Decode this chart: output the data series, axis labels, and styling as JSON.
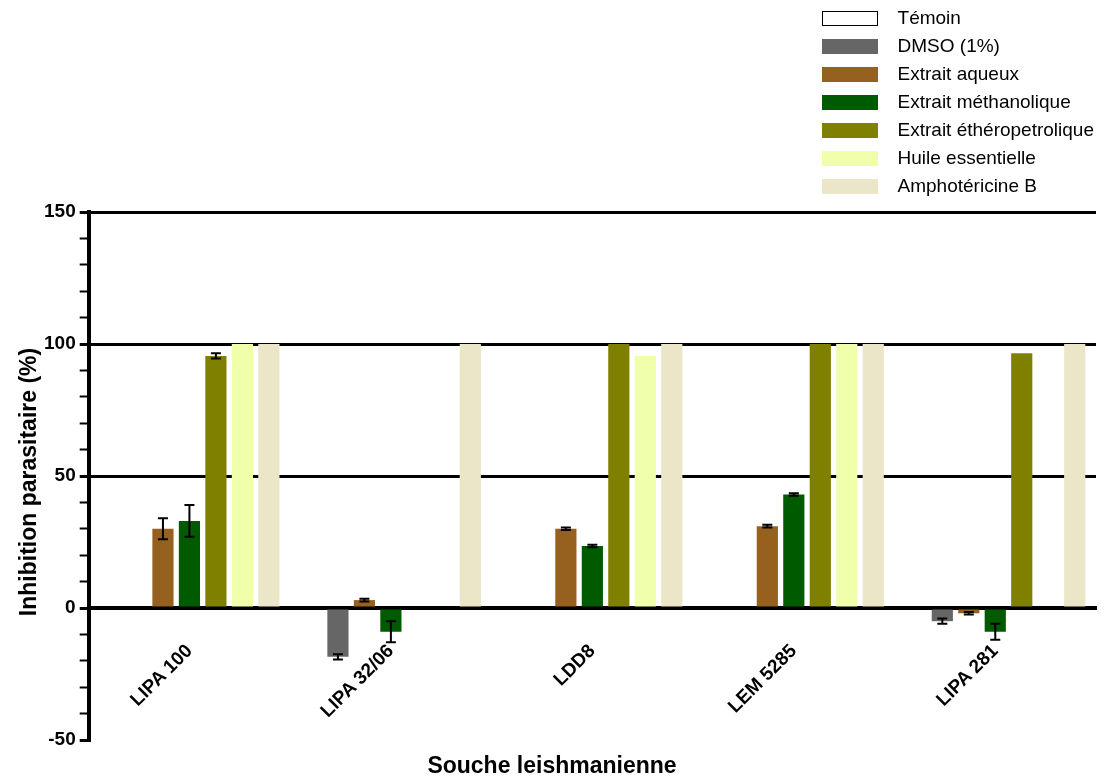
{
  "chart_data": {
    "type": "bar",
    "xlabel": "Souche leishmanienne",
    "ylabel": "Inhibition parasitaire (%)",
    "categories": [
      "LIPA 100",
      "LIPA 32/06",
      "LDD8",
      "LEM 5285",
      "LIPA 281"
    ],
    "series": [
      {
        "name": "Témoin",
        "color": "#ffffff",
        "values": [
          null,
          null,
          null,
          null,
          null
        ]
      },
      {
        "name": "DMSO (1%)",
        "color": "#666666",
        "values": [
          null,
          -18.5,
          null,
          null,
          -5
        ],
        "errors": [
          null,
          1,
          null,
          null,
          1
        ]
      },
      {
        "name": "Extrait aqueux",
        "color": "#96601e",
        "values": [
          30,
          3,
          30,
          31,
          -2
        ],
        "errors": [
          4,
          0.5,
          0.5,
          0.5,
          0.5
        ]
      },
      {
        "name": "Extrait méthanolique",
        "color": "#005a00",
        "values": [
          33,
          -9,
          23.5,
          43,
          -9
        ],
        "errors": [
          6,
          4,
          0.5,
          0.5,
          3
        ]
      },
      {
        "name": "Extrait éthéropetrolique",
        "color": "#808000",
        "values": [
          95.5,
          null,
          100,
          100,
          96.5
        ],
        "errors": [
          1,
          null,
          null,
          null,
          null
        ]
      },
      {
        "name": "Huile essentielle",
        "color": "#f0ffaa",
        "values": [
          100,
          null,
          95.5,
          100,
          null
        ]
      },
      {
        "name": "Amphotéricine B",
        "color": "#ebe6c8",
        "values": [
          100,
          100,
          100,
          100,
          100
        ]
      }
    ],
    "ylim": [
      -50,
      150
    ],
    "yticks": [
      -50,
      {
        "value": -40,
        "label": null
      },
      {
        "value": -30,
        "label": null
      },
      {
        "value": -20,
        "label": null
      },
      {
        "value": -10,
        "label": null
      },
      0,
      {
        "value": 10,
        "label": null
      },
      {
        "value": 20,
        "label": null
      },
      {
        "value": 30,
        "label": null
      },
      {
        "value": 40,
        "label": null
      },
      50,
      {
        "value": 60,
        "label": null
      },
      {
        "value": 70,
        "label": null
      },
      {
        "value": 80,
        "label": null
      },
      {
        "value": 90,
        "label": null
      },
      100,
      {
        "value": 110,
        "label": null
      },
      {
        "value": 120,
        "label": null
      },
      {
        "value": 130,
        "label": null
      },
      {
        "value": 140,
        "label": null
      },
      150
    ],
    "grid": "y",
    "legend": "top right"
  }
}
